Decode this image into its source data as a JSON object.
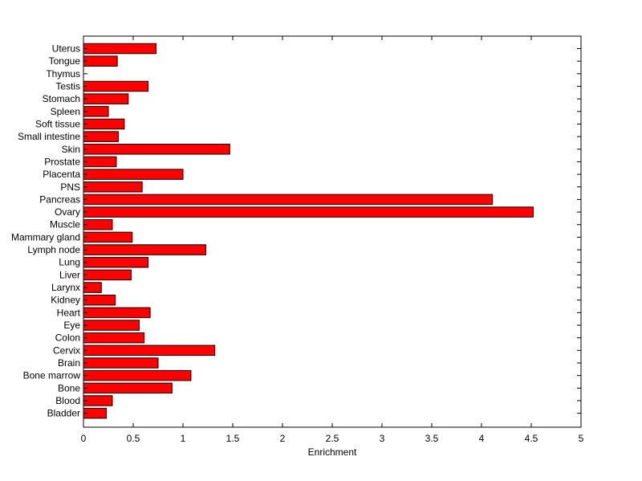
{
  "chart_data": {
    "type": "bar",
    "orientation": "horizontal",
    "categories": [
      "Uterus",
      "Tongue",
      "Thymus",
      "Testis",
      "Stomach",
      "Spleen",
      "Soft tissue",
      "Small intestine",
      "Skin",
      "Prostate",
      "Placenta",
      "PNS",
      "Pancreas",
      "Ovary",
      "Muscle",
      "Mammary gland",
      "Lymph node",
      "Lung",
      "Liver",
      "Larynx",
      "Kidney",
      "Heart",
      "Eye",
      "Colon",
      "Cervix",
      "Brain",
      "Bone marrow",
      "Bone",
      "Blood",
      "Bladder"
    ],
    "values": [
      0.73,
      0.34,
      0.0,
      0.65,
      0.45,
      0.25,
      0.41,
      0.35,
      1.47,
      0.33,
      1.0,
      0.59,
      4.11,
      4.52,
      0.29,
      0.49,
      1.23,
      0.65,
      0.48,
      0.18,
      0.32,
      0.67,
      0.56,
      0.61,
      1.32,
      0.75,
      1.08,
      0.89,
      0.29,
      0.23
    ],
    "title": "",
    "xlabel": "Enrichment",
    "ylabel": "",
    "xlim": [
      0,
      5
    ],
    "xticks": [
      "0",
      "0.5",
      "1",
      "1.5",
      "2",
      "2.5",
      "3",
      "3.5",
      "4",
      "4.5",
      "5"
    ],
    "grid": false,
    "bar_color": "#ff0000",
    "bar_edge_color": "#000000"
  }
}
